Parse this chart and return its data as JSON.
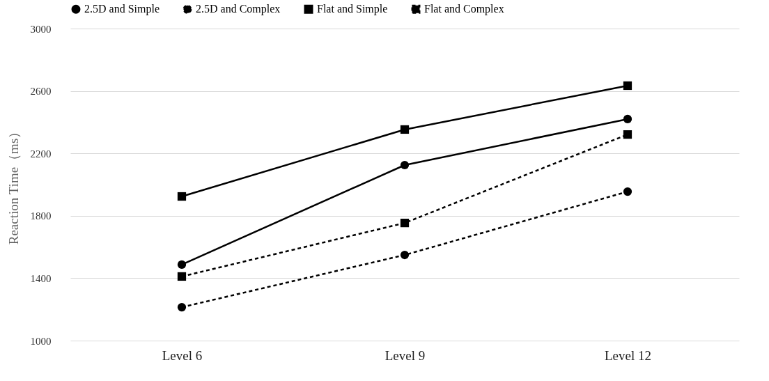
{
  "chart_data": {
    "type": "line",
    "ylabel": "Reaction Time（ms）",
    "categories": [
      "Level 6",
      "Level 9",
      "Level 12"
    ],
    "series": [
      {
        "name": "2.5D and Simple",
        "color": "#000000",
        "marker": "circle",
        "line_style": "solid",
        "values": [
          1487,
          2125,
          2420
        ]
      },
      {
        "name": "2.5D and Complex",
        "color": "#000000",
        "marker": "circle",
        "line_style": "dashed",
        "values": [
          1214,
          1549,
          1955
        ]
      },
      {
        "name": "Flat and Simple",
        "color": "#000000",
        "marker": "square",
        "line_style": "solid",
        "values": [
          1924,
          2353,
          2634
        ]
      },
      {
        "name": "Flat and Complex",
        "color": "#000000",
        "marker": "square",
        "line_style": "dashed",
        "values": [
          1411,
          1754,
          2321
        ]
      }
    ],
    "ylim": [
      1000,
      3000
    ],
    "yticks": [
      1000,
      1400,
      1800,
      2200,
      2600,
      3000
    ],
    "grid": "y",
    "legend": "top"
  }
}
